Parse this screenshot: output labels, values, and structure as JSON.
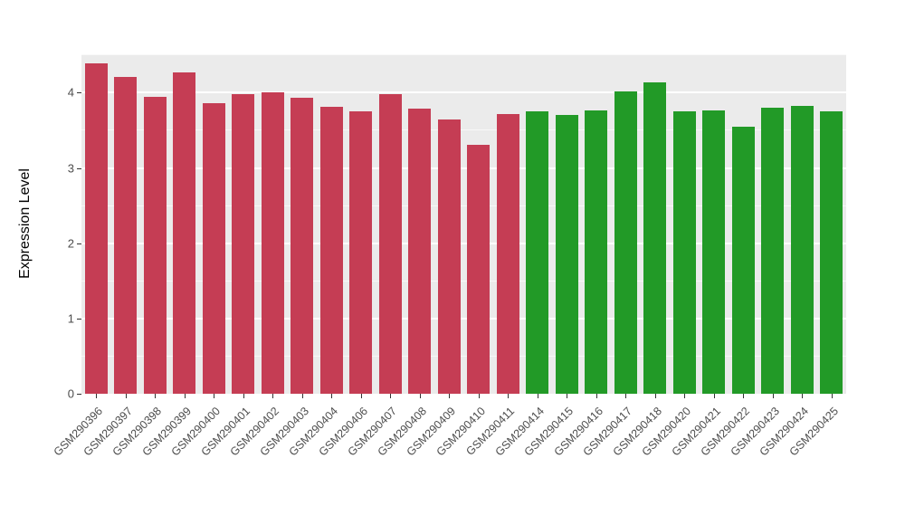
{
  "chart_data": {
    "type": "bar",
    "title": "",
    "xlabel": "",
    "ylabel": "Expression Level",
    "ylim": [
      0,
      4.51
    ],
    "yticks": [
      0,
      1,
      2,
      3,
      4
    ],
    "grid": "on",
    "legend": "none",
    "panel_background": "#EBEBEB",
    "grid_color": "#FFFFFF",
    "categories": [
      "GSM290396",
      "GSM290397",
      "GSM290398",
      "GSM290399",
      "GSM290400",
      "GSM290401",
      "GSM290402",
      "GSM290403",
      "GSM290404",
      "GSM290406",
      "GSM290407",
      "GSM290408",
      "GSM290409",
      "GSM290410",
      "GSM290411",
      "GSM290414",
      "GSM290415",
      "GSM290416",
      "GSM290417",
      "GSM290418",
      "GSM290420",
      "GSM290421",
      "GSM290422",
      "GSM290423",
      "GSM290424",
      "GSM290425"
    ],
    "values": [
      4.39,
      4.21,
      3.95,
      4.27,
      3.86,
      3.98,
      4.01,
      3.93,
      3.81,
      3.75,
      3.98,
      3.79,
      3.65,
      3.31,
      3.72,
      3.75,
      3.71,
      3.76,
      4.02,
      4.14,
      3.75,
      3.76,
      3.55,
      3.8,
      3.82,
      3.75
    ],
    "groups": [
      "red",
      "red",
      "red",
      "red",
      "red",
      "red",
      "red",
      "red",
      "red",
      "red",
      "red",
      "red",
      "red",
      "red",
      "red",
      "green",
      "green",
      "green",
      "green",
      "green",
      "green",
      "green",
      "green",
      "green",
      "green",
      "green"
    ],
    "group_colors": {
      "red": "#C53D54",
      "green": "#229A27"
    }
  }
}
